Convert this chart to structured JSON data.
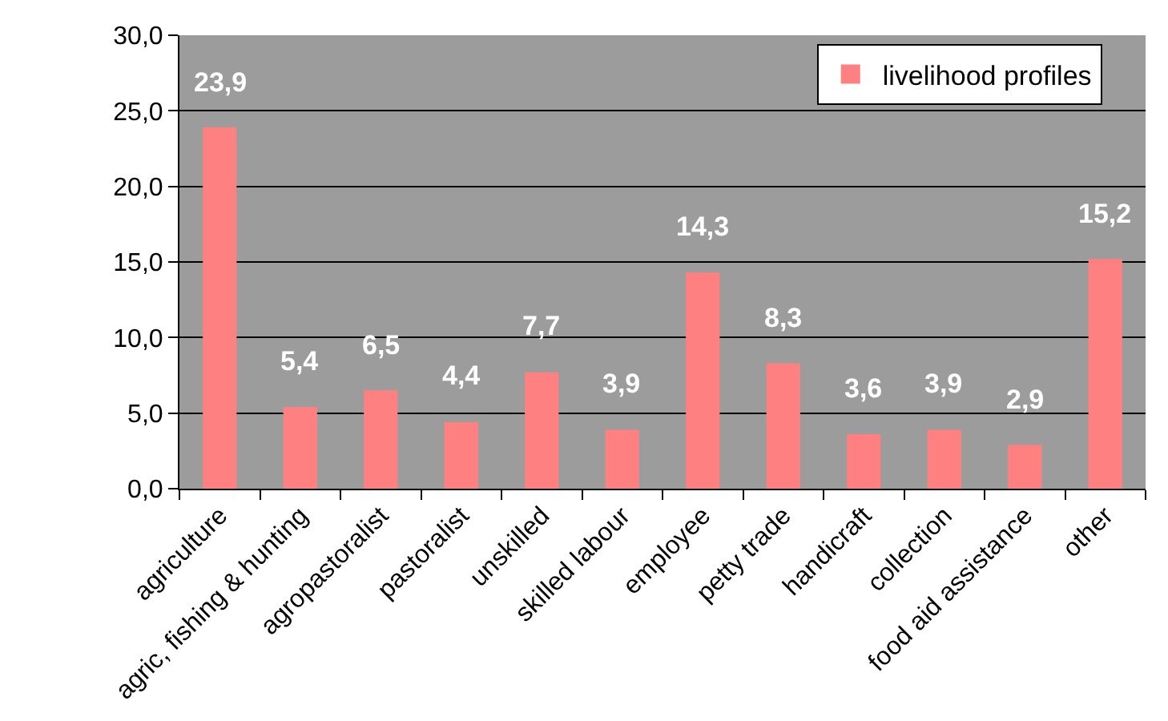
{
  "chart_data": {
    "type": "bar",
    "categories": [
      "agriculture",
      "agric, fishing & hunting",
      "agropastoralist",
      "pastoralist",
      "unskilled",
      "skilled labour",
      "employee",
      "petty trade",
      "handicraft",
      "collection",
      "food aid assistance",
      "other"
    ],
    "series": [
      {
        "name": "livelihood profiles",
        "color": "#ff8080",
        "values": [
          23.9,
          5.4,
          6.5,
          4.4,
          7.7,
          3.9,
          14.3,
          8.3,
          3.6,
          3.9,
          2.9,
          15.2
        ],
        "value_labels": [
          "23,9",
          "5,4",
          "6,5",
          "4,4",
          "7,7",
          "3,9",
          "14,3",
          "8,3",
          "3,6",
          "3,9",
          "2,9",
          "15,2"
        ]
      }
    ],
    "ylim": [
      0,
      30
    ],
    "yticks": [
      {
        "value": 0,
        "label": "0,0"
      },
      {
        "value": 5,
        "label": "5,0"
      },
      {
        "value": 10,
        "label": "10,0"
      },
      {
        "value": 15,
        "label": "15,0"
      },
      {
        "value": 20,
        "label": "20,0"
      },
      {
        "value": 25,
        "label": "25,0"
      },
      {
        "value": 30,
        "label": "30,0"
      }
    ],
    "grid": "y",
    "legend": "top right"
  }
}
